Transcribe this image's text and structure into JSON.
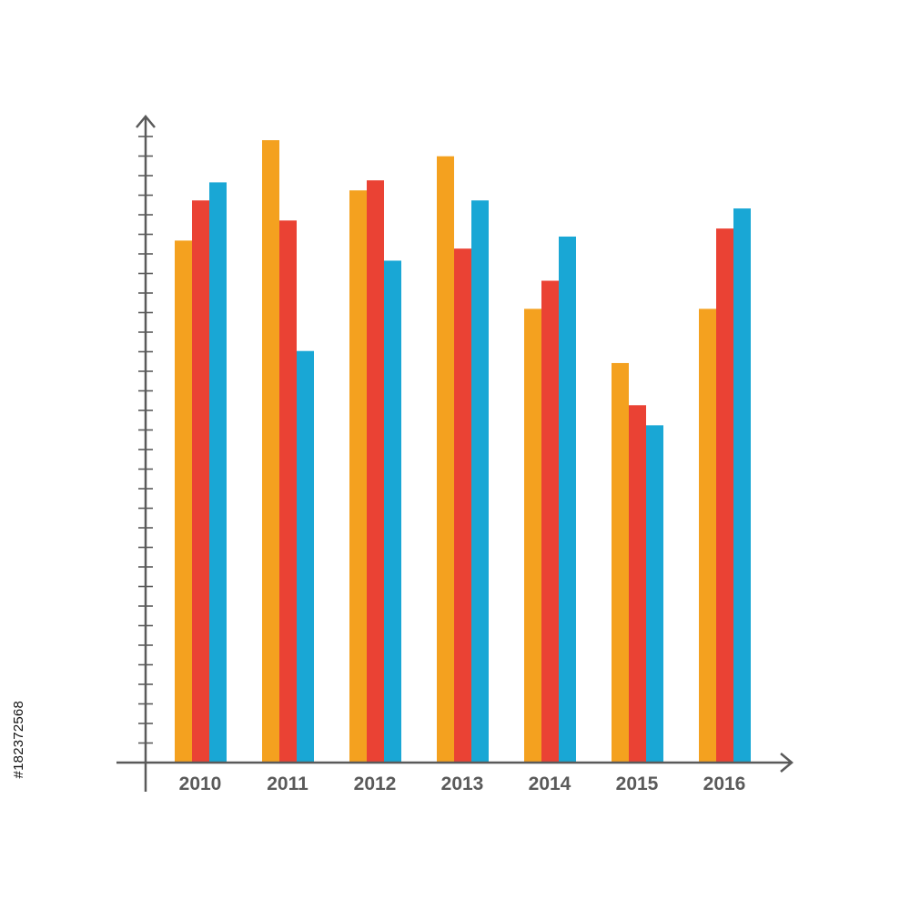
{
  "watermark": {
    "stock_id": "#182372568"
  },
  "colors": {
    "axis": "#5a5a5a",
    "series": [
      "#F4A11F",
      "#EA4234",
      "#19A7D5"
    ]
  },
  "chart_data": {
    "type": "bar",
    "title": "",
    "xlabel": "",
    "ylabel": "",
    "categories": [
      "2010",
      "2011",
      "2012",
      "2013",
      "2014",
      "2015",
      "2016"
    ],
    "ylim": [
      0,
      32
    ],
    "y_ticks": 32,
    "grid": false,
    "y_tick_labels": false,
    "series": [
      {
        "color": "#F4A11F",
        "values": [
          26.0,
          31.0,
          28.5,
          30.2,
          22.6,
          19.9,
          22.6
        ]
      },
      {
        "color": "#EA4234",
        "values": [
          28.0,
          27.0,
          29.0,
          25.6,
          24.0,
          17.8,
          26.6
        ]
      },
      {
        "color": "#19A7D5",
        "values": [
          28.9,
          20.5,
          25.0,
          28.0,
          26.2,
          16.8,
          27.6
        ]
      }
    ]
  }
}
